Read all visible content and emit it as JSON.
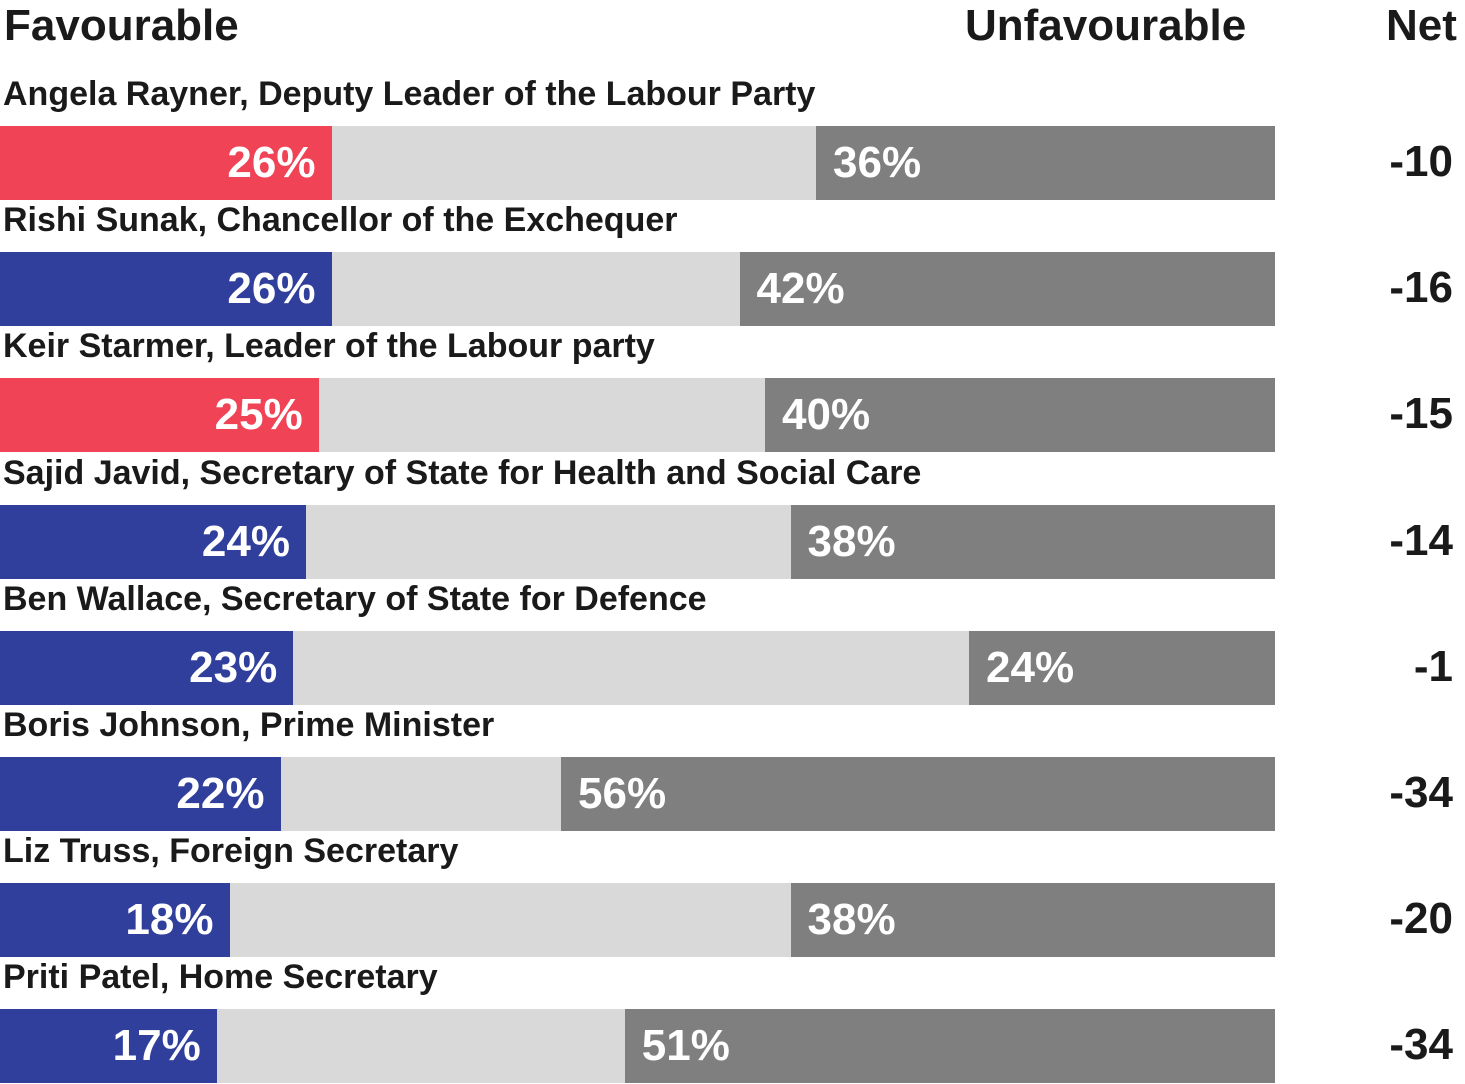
{
  "header": {
    "favourable": "Favourable",
    "unfavourable": "Unfavourable",
    "net": "Net"
  },
  "colors": {
    "labour": "#f04356",
    "conservative": "#303f9b",
    "neutral": "#d9d9d9",
    "unfavourable": "#7f7f7f"
  },
  "chart_data": {
    "type": "bar",
    "orientation": "horizontal-stacked",
    "xlim": [
      0,
      100
    ],
    "categories": [
      "Angela Rayner, Deputy Leader of the Labour Party",
      "Rishi Sunak, Chancellor of the Exchequer",
      "Keir Starmer, Leader of the Labour party",
      "Sajid Javid, Secretary of State for Health and Social Care",
      "Ben Wallace, Secretary of State for Defence",
      "Boris Johnson, Prime Minister",
      "Liz Truss, Foreign Secretary",
      "Priti Patel, Home Secretary"
    ],
    "party": [
      "labour",
      "conservative",
      "labour",
      "conservative",
      "conservative",
      "conservative",
      "conservative",
      "conservative"
    ],
    "series": [
      {
        "name": "Favourable",
        "values": [
          26,
          26,
          25,
          24,
          23,
          22,
          18,
          17
        ],
        "labels": [
          "26%",
          "26%",
          "25%",
          "24%",
          "23%",
          "22%",
          "18%",
          "17%"
        ]
      },
      {
        "name": "Unfavourable",
        "values": [
          36,
          42,
          40,
          38,
          24,
          56,
          38,
          51
        ],
        "labels": [
          "36%",
          "42%",
          "40%",
          "38%",
          "24%",
          "56%",
          "38%",
          "51%"
        ]
      }
    ],
    "net": [
      "-10",
      "-16",
      "-15",
      "-14",
      "-1",
      "-34",
      "-20",
      "-34"
    ]
  }
}
